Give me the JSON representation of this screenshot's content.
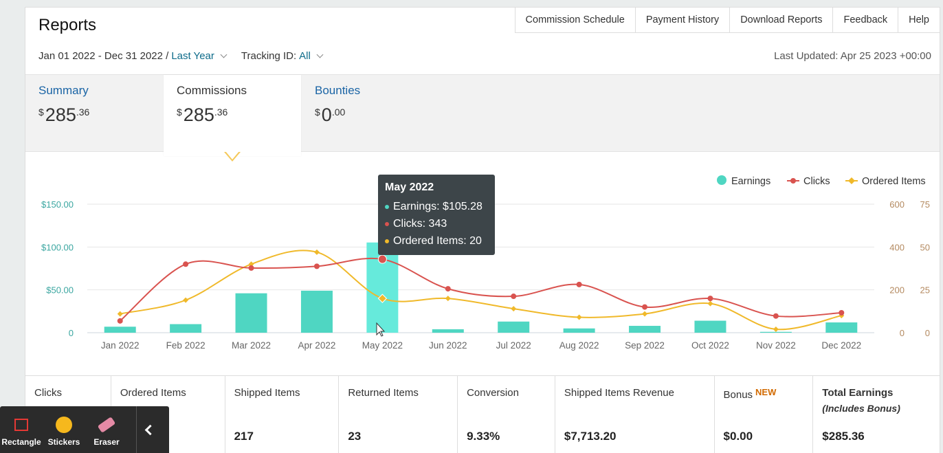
{
  "header": {
    "title": "Reports",
    "links": [
      "Commission Schedule",
      "Payment History",
      "Download Reports",
      "Feedback",
      "Help"
    ],
    "date_range": "Jan 01 2022 - Dec 31 2022 /",
    "range_link": "Last Year",
    "tracking_label": "Tracking ID:",
    "tracking_value": "All",
    "last_updated": "Last Updated: Apr 25 2023 +00:00"
  },
  "tabs": [
    {
      "label": "Summary",
      "currency": "$",
      "whole": "285",
      "cents": ".36"
    },
    {
      "label": "Commissions",
      "currency": "$",
      "whole": "285",
      "cents": ".36"
    },
    {
      "label": "Bounties",
      "currency": "$",
      "whole": "0",
      "cents": ".00"
    }
  ],
  "legend": {
    "earnings": "Earnings",
    "clicks": "Clicks",
    "ordered": "Ordered Items"
  },
  "tooltip": {
    "title": "May 2022",
    "earnings": "Earnings: $105.28",
    "clicks": "Clicks: 343",
    "ordered": "Ordered Items: 20"
  },
  "chart_data": {
    "type": "bar",
    "categories": [
      "Jan 2022",
      "Feb 2022",
      "Mar 2022",
      "Apr 2022",
      "May 2022",
      "Jun 2022",
      "Jul 2022",
      "Aug 2022",
      "Sep 2022",
      "Oct 2022",
      "Nov 2022",
      "Dec 2022"
    ],
    "series": [
      {
        "name": "Earnings",
        "type": "bar",
        "axis": "left",
        "values": [
          7,
          10,
          46,
          49,
          105.28,
          4,
          13,
          5,
          8,
          14,
          1,
          12
        ]
      },
      {
        "name": "Clicks",
        "type": "line",
        "axis": "right-1",
        "values": [
          55,
          320,
          302,
          310,
          343,
          205,
          170,
          225,
          120,
          160,
          78,
          93
        ]
      },
      {
        "name": "Ordered Items",
        "type": "line",
        "axis": "right-2",
        "values": [
          11,
          19,
          40,
          47,
          20,
          20,
          14,
          9,
          11,
          17,
          2,
          10
        ]
      }
    ],
    "left_axis": {
      "ticks": [
        "$150.00",
        "$100.00",
        "$50.00",
        "0"
      ],
      "ylim": [
        0,
        150
      ]
    },
    "right_axis_1": {
      "ticks": [
        "600",
        "400",
        "200",
        "0"
      ],
      "ylim": [
        0,
        600
      ]
    },
    "right_axis_2": {
      "ticks": [
        "75",
        "50",
        "25",
        "0"
      ],
      "ylim": [
        0,
        75
      ]
    },
    "colors": {
      "earnings": "#4fd6c2",
      "earnings_highlight": "#66eadb",
      "clicks": "#d9534f",
      "ordered": "#f0b92a",
      "left_axis_text": "#3aa6a0",
      "right_axis_text": "#b48a60"
    },
    "grid": true,
    "legend_position": "top-right"
  },
  "stats": [
    {
      "label": "Clicks",
      "value": ""
    },
    {
      "label": "Ordered Items",
      "value": ""
    },
    {
      "label": "Shipped Items",
      "value": "217"
    },
    {
      "label": "Returned Items",
      "value": "23"
    },
    {
      "label": "Conversion",
      "value": "9.33%"
    },
    {
      "label": "Shipped Items Revenue",
      "value": "$7,713.20"
    },
    {
      "label": "Bonus",
      "badge": "NEW",
      "value": "$0.00"
    },
    {
      "label": "Total Earnings",
      "sub": "(Includes Bonus)",
      "value": "$285.36"
    }
  ],
  "toolbar": {
    "rectangle": "Rectangle",
    "stickers": "Stickers",
    "eraser": "Eraser"
  }
}
